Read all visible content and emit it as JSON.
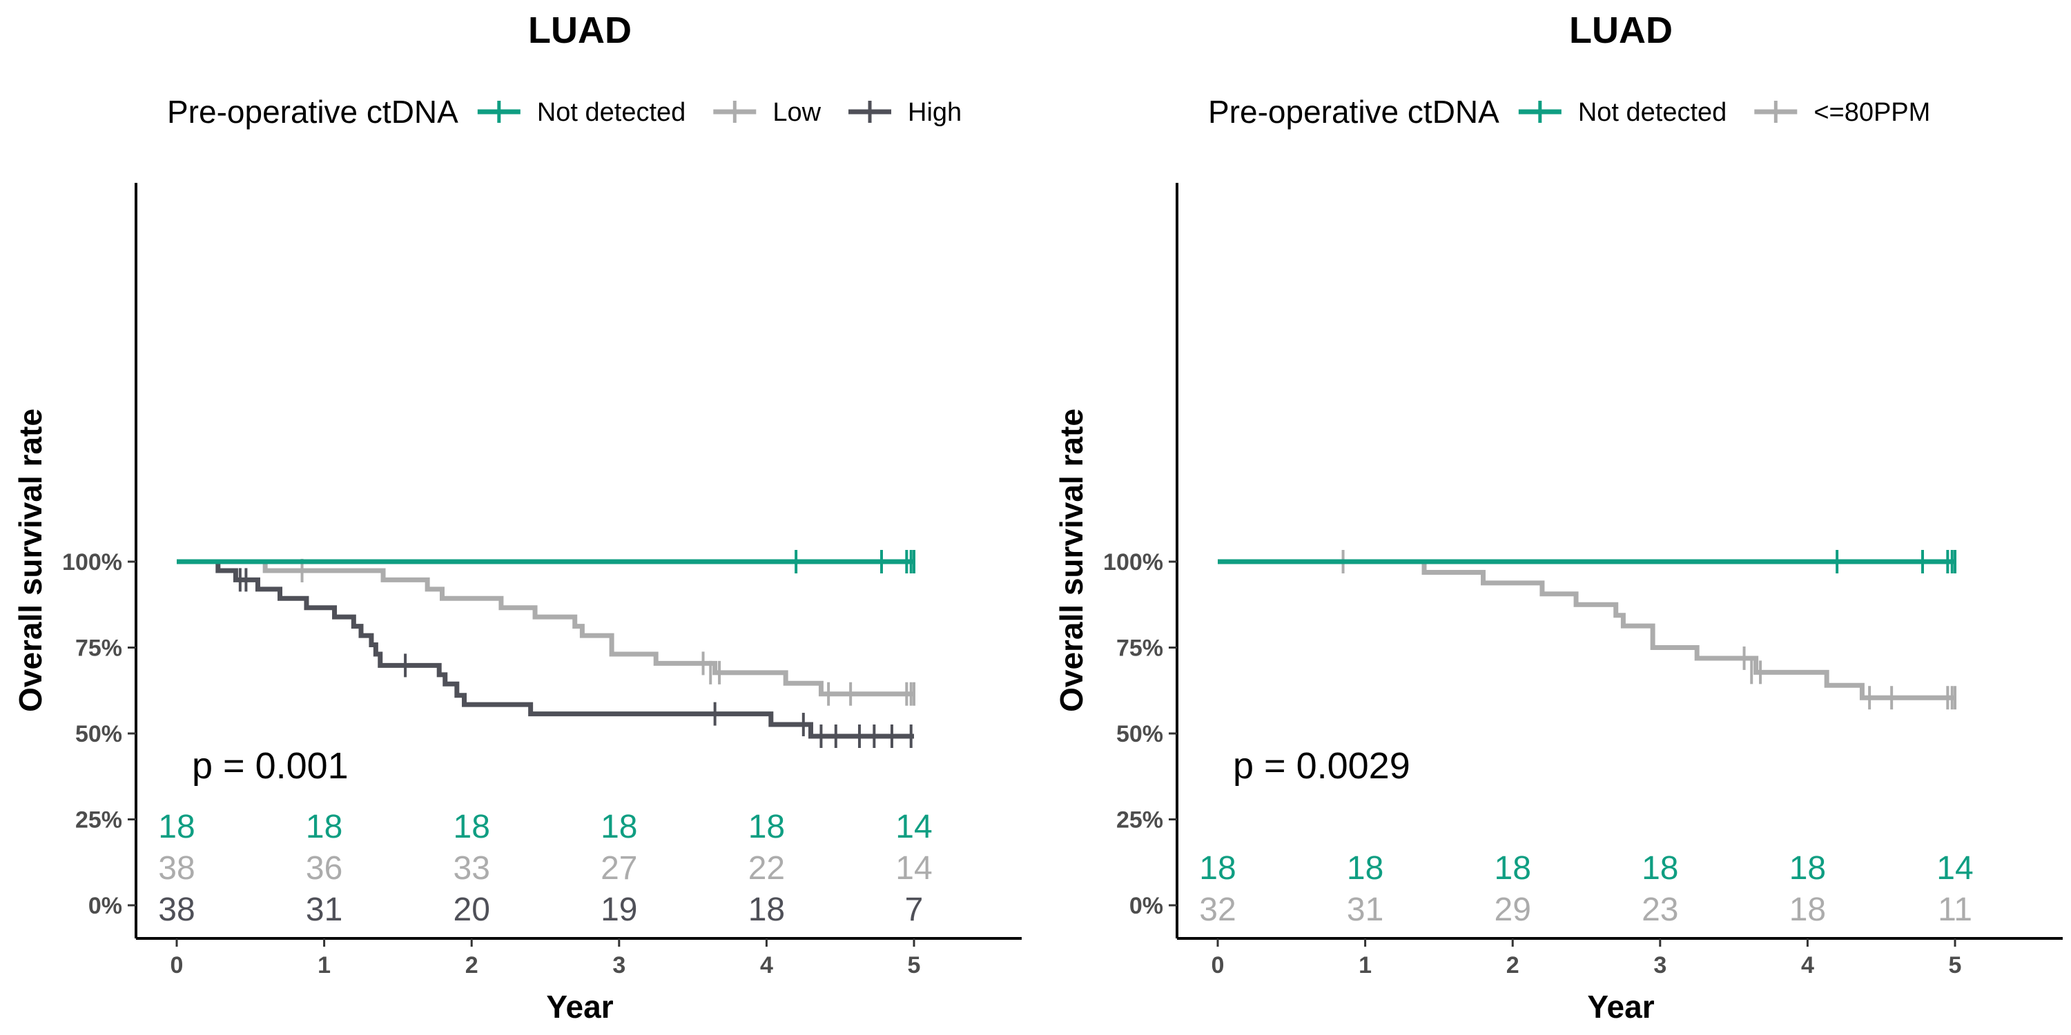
{
  "colors": {
    "not_detected": "#0f9e82",
    "low": "#acacac",
    "high": "#4f5058"
  },
  "chart_data": [
    {
      "type": "line",
      "subtype": "kaplan-meier",
      "title": "LUAD",
      "legend_title": "Pre-operative ctDNA",
      "legend_position": "top",
      "xlabel": "Year",
      "ylabel": "Overall survival rate",
      "xlim": [
        0,
        5.75
      ],
      "ylim": [
        -0.04,
        1.05
      ],
      "xticks": [
        "0",
        "1",
        "2",
        "3",
        "4",
        "5"
      ],
      "yticks": [
        "0%",
        "25%",
        "50%",
        "75%",
        "100%"
      ],
      "grid": false,
      "pvalue": "p = 0.001",
      "series": [
        {
          "name": "Not detected",
          "color": "#0f9e82",
          "steps": [
            [
              0,
              1.0
            ],
            [
              5.0,
              1.0
            ]
          ],
          "censors": [
            [
              4.2,
              1.0
            ],
            [
              4.78,
              1.0
            ],
            [
              4.95,
              1.0
            ],
            [
              4.98,
              1.0
            ],
            [
              5.0,
              1.0
            ]
          ]
        },
        {
          "name": "Low",
          "color": "#acacac",
          "steps": [
            [
              0,
              1.0
            ],
            [
              0.6,
              0.974
            ],
            [
              1.4,
              0.947
            ],
            [
              1.7,
              0.92
            ],
            [
              1.8,
              0.893
            ],
            [
              2.2,
              0.866
            ],
            [
              2.43,
              0.839
            ],
            [
              2.7,
              0.812
            ],
            [
              2.75,
              0.785
            ],
            [
              2.95,
              0.731
            ],
            [
              3.25,
              0.704
            ],
            [
              3.65,
              0.677
            ],
            [
              4.13,
              0.646
            ],
            [
              4.37,
              0.615
            ],
            [
              5.0,
              0.615
            ]
          ],
          "censors": [
            [
              0.85,
              0.974
            ],
            [
              3.57,
              0.704
            ],
            [
              3.62,
              0.677
            ],
            [
              3.68,
              0.677
            ],
            [
              4.42,
              0.615
            ],
            [
              4.57,
              0.615
            ],
            [
              4.95,
              0.615
            ],
            [
              4.98,
              0.615
            ],
            [
              5.0,
              0.615
            ]
          ]
        },
        {
          "name": "High",
          "color": "#4f5058",
          "steps": [
            [
              0,
              1.0
            ],
            [
              0.28,
              0.974
            ],
            [
              0.4,
              0.947
            ],
            [
              0.55,
              0.92
            ],
            [
              0.7,
              0.893
            ],
            [
              0.88,
              0.866
            ],
            [
              1.07,
              0.839
            ],
            [
              1.2,
              0.812
            ],
            [
              1.25,
              0.785
            ],
            [
              1.32,
              0.758
            ],
            [
              1.35,
              0.731
            ],
            [
              1.38,
              0.698
            ],
            [
              1.78,
              0.671
            ],
            [
              1.82,
              0.644
            ],
            [
              1.9,
              0.611
            ],
            [
              1.95,
              0.584
            ],
            [
              2.4,
              0.557
            ],
            [
              4.03,
              0.526
            ],
            [
              4.3,
              0.492
            ],
            [
              5.0,
              0.492
            ]
          ],
          "censors": [
            [
              0.43,
              0.947
            ],
            [
              0.47,
              0.947
            ],
            [
              1.55,
              0.698
            ],
            [
              3.65,
              0.557
            ],
            [
              4.25,
              0.526
            ],
            [
              4.37,
              0.492
            ],
            [
              4.47,
              0.492
            ],
            [
              4.63,
              0.492
            ],
            [
              4.73,
              0.492
            ],
            [
              4.85,
              0.492
            ],
            [
              4.98,
              0.492
            ]
          ]
        }
      ],
      "risk_table": [
        {
          "series": "Not detected",
          "values": [
            18,
            18,
            18,
            18,
            18,
            14
          ]
        },
        {
          "series": "Low",
          "values": [
            38,
            36,
            33,
            27,
            22,
            14
          ]
        },
        {
          "series": "High",
          "values": [
            38,
            31,
            20,
            19,
            18,
            7
          ]
        }
      ]
    },
    {
      "type": "line",
      "subtype": "kaplan-meier",
      "title": "LUAD",
      "legend_title": "Pre-operative ctDNA",
      "legend_position": "top",
      "xlabel": "Year",
      "ylabel": "Overall survival rate",
      "xlim": [
        0,
        5.75
      ],
      "ylim": [
        -0.04,
        1.05
      ],
      "xticks": [
        "0",
        "1",
        "2",
        "3",
        "4",
        "5"
      ],
      "yticks": [
        "0%",
        "25%",
        "50%",
        "75%",
        "100%"
      ],
      "grid": false,
      "pvalue": "p = 0.0029",
      "series": [
        {
          "name": "Not detected",
          "color": "#0f9e82",
          "steps": [
            [
              0,
              1.0
            ],
            [
              5.0,
              1.0
            ]
          ],
          "censors": [
            [
              4.2,
              1.0
            ],
            [
              4.78,
              1.0
            ],
            [
              4.95,
              1.0
            ],
            [
              4.98,
              1.0
            ],
            [
              5.0,
              1.0
            ]
          ]
        },
        {
          "name": "<=80PPM",
          "color": "#acacac",
          "steps": [
            [
              0,
              1.0
            ],
            [
              1.4,
              0.969
            ],
            [
              1.8,
              0.938
            ],
            [
              2.2,
              0.906
            ],
            [
              2.43,
              0.875
            ],
            [
              2.7,
              0.844
            ],
            [
              2.75,
              0.813
            ],
            [
              2.95,
              0.75
            ],
            [
              3.25,
              0.719
            ],
            [
              3.65,
              0.678
            ],
            [
              4.13,
              0.64
            ],
            [
              4.37,
              0.604
            ],
            [
              5.0,
              0.604
            ]
          ],
          "censors": [
            [
              0.85,
              1.0
            ],
            [
              3.57,
              0.719
            ],
            [
              3.62,
              0.678
            ],
            [
              3.68,
              0.678
            ],
            [
              4.42,
              0.604
            ],
            [
              4.57,
              0.604
            ],
            [
              4.95,
              0.604
            ],
            [
              4.98,
              0.604
            ],
            [
              5.0,
              0.604
            ]
          ]
        }
      ],
      "risk_table": [
        {
          "series": "Not detected",
          "values": [
            18,
            18,
            18,
            18,
            18,
            14
          ]
        },
        {
          "series": "<=80PPM",
          "values": [
            32,
            31,
            29,
            23,
            18,
            11
          ]
        }
      ]
    }
  ]
}
